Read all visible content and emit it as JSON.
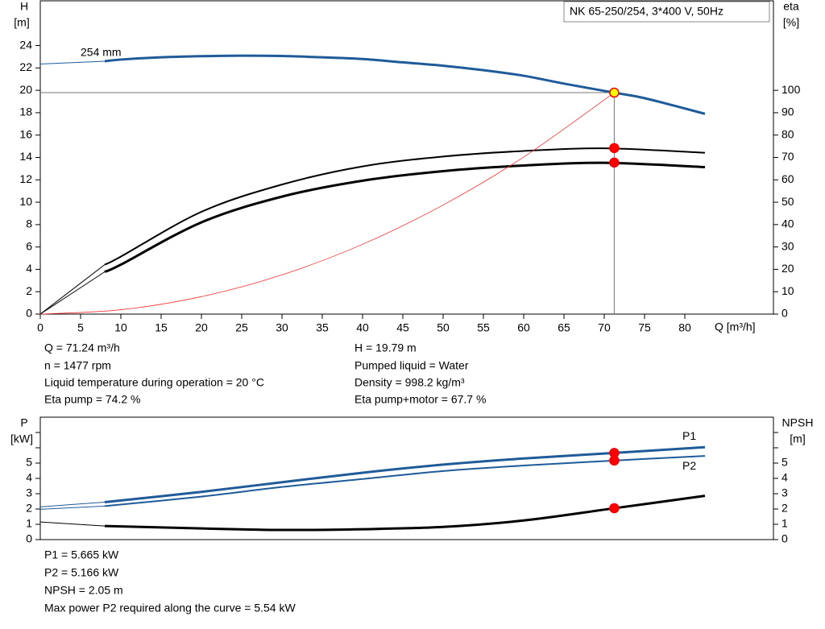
{
  "chart_data": [
    {
      "type": "line",
      "title": "NK 65-250/254, 3*400 V, 50Hz",
      "y_label": "H",
      "y_unit": "[m]",
      "y2_label": "eta",
      "y2_unit": "[%]",
      "x_label": "Q [m³/h]",
      "xlim": [
        0,
        91
      ],
      "xticks": [
        0,
        5,
        10,
        15,
        20,
        25,
        30,
        35,
        40,
        45,
        50,
        55,
        60,
        65,
        70,
        75,
        80
      ],
      "ylim": [
        0,
        28
      ],
      "yticks": [
        0,
        2,
        4,
        6,
        8,
        10,
        12,
        14,
        16,
        18,
        20,
        22,
        24
      ],
      "y2lim": [
        0,
        140
      ],
      "y2ticks": [
        0,
        10,
        20,
        30,
        40,
        50,
        60,
        70,
        80,
        90,
        100
      ],
      "series": [
        {
          "name": "254 mm",
          "color": "#1f5b99",
          "weight": "bold",
          "x": [
            8,
            10,
            15,
            20,
            25,
            30,
            35,
            40,
            45,
            50,
            55,
            60,
            65,
            71.24,
            75,
            82.5
          ],
          "values": [
            22.6,
            22.75,
            22.95,
            23.05,
            23.1,
            23.07,
            22.95,
            22.8,
            22.5,
            22.2,
            21.8,
            21.3,
            20.6,
            19.79,
            19.3,
            17.9
          ]
        },
        {
          "color": "#1f5b99",
          "weight": "thin",
          "x": [
            0,
            8
          ],
          "values": [
            22.35,
            22.6
          ]
        },
        {
          "color": "#000000",
          "weight": "medium",
          "axis": "y2",
          "x": [
            8,
            10,
            20,
            30,
            40,
            50,
            60,
            70,
            82.5
          ],
          "values": [
            22.1,
            25.7,
            45.7,
            57.9,
            66,
            70.4,
            72.9,
            74.1,
            72.1
          ]
        },
        {
          "color": "#000000",
          "weight": "thin",
          "axis": "y2",
          "x": [
            0,
            8
          ],
          "values": [
            0,
            22.1
          ]
        },
        {
          "color": "#000000",
          "weight": "bold",
          "axis": "y2",
          "x": [
            8,
            10,
            20,
            30,
            40,
            50,
            60,
            70,
            82.5
          ],
          "values": [
            18.9,
            22.1,
            41,
            52.5,
            59.6,
            63.9,
            66.4,
            67.6,
            65.7
          ]
        },
        {
          "color": "#000000",
          "weight": "thin",
          "axis": "y2",
          "x": [
            0,
            8
          ],
          "values": [
            0,
            18.9
          ]
        },
        {
          "color": "#ff3030",
          "weight": "hair",
          "x": [
            0,
            10,
            20,
            30,
            40,
            50,
            60,
            71.24
          ],
          "values": [
            0,
            0.39,
            1.56,
            3.51,
            6.24,
            9.75,
            14.04,
            19.79
          ]
        }
      ],
      "reference": {
        "x": 71.24,
        "y": 19.79
      },
      "markers": [
        {
          "x": 71.24,
          "y": 19.79,
          "color": "#ffff00"
        },
        {
          "x": 71.24,
          "y": 74.2,
          "axis": "y2",
          "color": "#ff0000"
        },
        {
          "x": 71.24,
          "y": 67.7,
          "axis": "y2",
          "color": "#ff0000"
        }
      ],
      "notes": [
        [
          "Q = 71.24 m³/h",
          "n = 1477 rpm",
          "Liquid temperature during operation = 20 °C",
          "Eta pump = 74.2 %"
        ],
        [
          "H = 19.79 m",
          "Pumped liquid = Water",
          "Density = 998.2 kg/m³",
          "Eta pump+motor = 67.7 %"
        ]
      ]
    },
    {
      "type": "line",
      "y_label": "P",
      "y_unit": "[kW]",
      "y2_label": "NPSH",
      "y2_unit": "[m]",
      "xlim": [
        0,
        91
      ],
      "ylim": [
        0,
        8
      ],
      "yticks": [
        0,
        1,
        2,
        3,
        4,
        5
      ],
      "minor_yticks": [
        6,
        7
      ],
      "y2lim": [
        0,
        8
      ],
      "y2ticks": [
        0,
        1,
        2,
        3,
        4,
        5
      ],
      "minor_y2ticks": [
        6,
        7
      ],
      "series": [
        {
          "name": "P1",
          "color": "#1f5b99",
          "weight": "bold",
          "x": [
            8,
            20,
            30,
            40,
            50,
            60,
            71.24,
            82.5
          ],
          "values": [
            2.45,
            3.12,
            3.75,
            4.37,
            4.9,
            5.3,
            5.665,
            6.04
          ]
        },
        {
          "color": "#1f5b99",
          "weight": "thin",
          "x": [
            0,
            8
          ],
          "values": [
            2.14,
            2.45
          ]
        },
        {
          "name": "P2",
          "color": "#1f5b99",
          "weight": "medium",
          "x": [
            8,
            20,
            30,
            40,
            50,
            60,
            71.24,
            82.5
          ],
          "values": [
            2.19,
            2.81,
            3.44,
            3.96,
            4.48,
            4.84,
            5.166,
            5.47
          ]
        },
        {
          "color": "#1f5b99",
          "weight": "thin",
          "x": [
            0,
            8
          ],
          "values": [
            1.98,
            2.19
          ]
        },
        {
          "color": "#000000",
          "weight": "bold",
          "axis": "y2",
          "x": [
            8,
            20,
            30,
            40,
            50,
            60,
            71.24,
            82.5
          ],
          "values": [
            0.89,
            0.73,
            0.63,
            0.68,
            0.83,
            1.25,
            2.05,
            2.86
          ]
        },
        {
          "color": "#000000",
          "weight": "thin",
          "axis": "y2",
          "x": [
            0,
            8
          ],
          "values": [
            1.15,
            0.89
          ]
        }
      ],
      "markers": [
        {
          "x": 71.24,
          "y": 5.665,
          "color": "#ff0000"
        },
        {
          "x": 71.24,
          "y": 5.166,
          "color": "#ff0000"
        },
        {
          "x": 71.24,
          "y": 2.05,
          "axis": "y2",
          "color": "#ff0000"
        }
      ],
      "notes": [
        [
          "P1 = 5.665 kW",
          "P2 = 5.166 kW",
          "NPSH = 2.05 m",
          "Max power P2 required along the curve = 5.54 kW"
        ]
      ]
    }
  ]
}
